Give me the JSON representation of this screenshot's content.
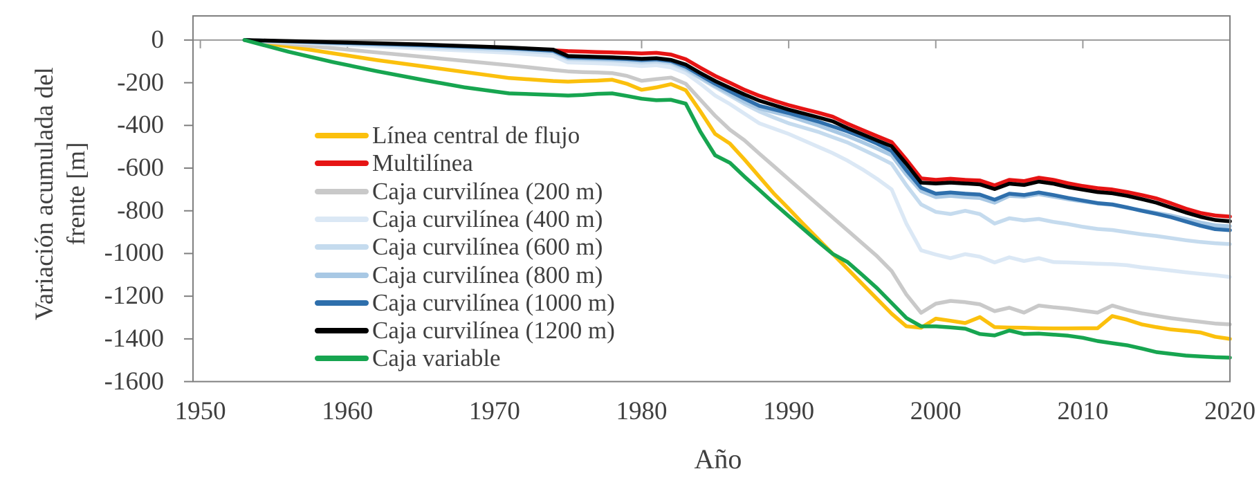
{
  "chart_data": {
    "type": "line",
    "title": "",
    "xlabel": "Año",
    "ylabel": "Variación acumulada del frente [m]",
    "ylabel_lines": [
      "Variación acumulada del",
      "frente [m]"
    ],
    "x_ticks": [
      1950,
      1960,
      1970,
      1980,
      1990,
      2000,
      2010,
      2020
    ],
    "y_ticks": [
      0,
      -200,
      -400,
      -600,
      -800,
      -1000,
      -1200,
      -1400,
      -1600
    ],
    "xlim": [
      1949.5,
      2020
    ],
    "ylim": [
      -1600,
      113
    ],
    "grid": false,
    "zero_axis_line": true,
    "legend_position": "inside-upper-left",
    "x": [
      1953,
      1956,
      1959,
      1962,
      1965,
      1968,
      1971,
      1974,
      1975,
      1976,
      1977,
      1978,
      1979,
      1980,
      1981,
      1982,
      1983,
      1984,
      1985,
      1986,
      1987,
      1988,
      1989,
      1990,
      1991,
      1992,
      1993,
      1994,
      1995,
      1996,
      1997,
      1998,
      1999,
      2000,
      2001,
      2002,
      2003,
      2004,
      2005,
      2006,
      2007,
      2008,
      2009,
      2010,
      2011,
      2012,
      2013,
      2014,
      2015,
      2016,
      2017,
      2018,
      2019,
      2020
    ],
    "series": [
      {
        "name": "Línea central de flujo",
        "color": "#FBC00D",
        "values": [
          0,
          -30,
          -62,
          -94,
          -122,
          -150,
          -178,
          -192,
          -195,
          -192,
          -190,
          -186,
          -205,
          -233,
          -222,
          -207,
          -235,
          -335,
          -440,
          -485,
          -560,
          -640,
          -720,
          -790,
          -862,
          -932,
          -1002,
          -1072,
          -1142,
          -1212,
          -1282,
          -1341,
          -1348,
          -1305,
          -1315,
          -1326,
          -1298,
          -1345,
          -1347,
          -1348,
          -1350,
          -1351,
          -1351,
          -1350,
          -1350,
          -1293,
          -1310,
          -1332,
          -1345,
          -1356,
          -1362,
          -1370,
          -1390,
          -1400
        ]
      },
      {
        "name": "Multilínea",
        "color": "#E61414",
        "values": [
          0,
          -8,
          -14,
          -21,
          -28,
          -36,
          -43,
          -48,
          -52,
          -54,
          -56,
          -58,
          -60,
          -63,
          -60,
          -68,
          -90,
          -130,
          -168,
          -200,
          -233,
          -261,
          -284,
          -305,
          -323,
          -340,
          -359,
          -392,
          -421,
          -450,
          -478,
          -560,
          -648,
          -655,
          -650,
          -655,
          -658,
          -681,
          -655,
          -661,
          -645,
          -655,
          -671,
          -684,
          -694,
          -700,
          -712,
          -726,
          -742,
          -765,
          -790,
          -810,
          -822,
          -827
        ]
      },
      {
        "name": "Caja curvilínea (200 m)",
        "color": "#C9C9C9",
        "values": [
          0,
          -18,
          -38,
          -58,
          -78,
          -98,
          -118,
          -140,
          -147,
          -150,
          -152,
          -155,
          -168,
          -191,
          -183,
          -176,
          -205,
          -280,
          -355,
          -420,
          -470,
          -532,
          -592,
          -652,
          -712,
          -772,
          -832,
          -892,
          -952,
          -1012,
          -1082,
          -1192,
          -1278,
          -1235,
          -1222,
          -1228,
          -1238,
          -1270,
          -1254,
          -1277,
          -1244,
          -1252,
          -1258,
          -1268,
          -1277,
          -1244,
          -1264,
          -1280,
          -1292,
          -1303,
          -1312,
          -1320,
          -1328,
          -1332
        ]
      },
      {
        "name": "Caja curvilínea (400 m)",
        "color": "#DBE8F5",
        "values": [
          0,
          -10,
          -20,
          -30,
          -40,
          -50,
          -60,
          -75,
          -105,
          -107,
          -109,
          -112,
          -116,
          -122,
          -118,
          -128,
          -155,
          -205,
          -260,
          -300,
          -345,
          -390,
          -415,
          -440,
          -470,
          -500,
          -530,
          -565,
          -605,
          -650,
          -700,
          -860,
          -985,
          -1005,
          -1022,
          -1003,
          -1015,
          -1042,
          -1018,
          -1035,
          -1022,
          -1040,
          -1042,
          -1045,
          -1048,
          -1050,
          -1055,
          -1065,
          -1072,
          -1080,
          -1088,
          -1095,
          -1102,
          -1110
        ]
      },
      {
        "name": "Caja curvilínea (600 m)",
        "color": "#C5DBEE",
        "values": [
          0,
          -8,
          -16,
          -24,
          -32,
          -40,
          -48,
          -60,
          -90,
          -92,
          -94,
          -96,
          -100,
          -106,
          -102,
          -110,
          -140,
          -180,
          -220,
          -260,
          -300,
          -335,
          -363,
          -390,
          -410,
          -430,
          -455,
          -480,
          -512,
          -545,
          -580,
          -680,
          -770,
          -805,
          -815,
          -800,
          -815,
          -860,
          -835,
          -845,
          -838,
          -852,
          -862,
          -875,
          -885,
          -890,
          -900,
          -910,
          -918,
          -928,
          -938,
          -946,
          -952,
          -956
        ]
      },
      {
        "name": "Caja curvilínea (800 m)",
        "color": "#A8C8E4",
        "values": [
          0,
          -7,
          -13,
          -19,
          -26,
          -33,
          -40,
          -52,
          -85,
          -87,
          -89,
          -91,
          -94,
          -98,
          -95,
          -103,
          -133,
          -175,
          -215,
          -252,
          -290,
          -320,
          -338,
          -355,
          -378,
          -400,
          -425,
          -450,
          -478,
          -508,
          -540,
          -630,
          -708,
          -736,
          -730,
          -736,
          -740,
          -762,
          -730,
          -734,
          -722,
          -734,
          -746,
          -756,
          -766,
          -772,
          -786,
          -798,
          -810,
          -822,
          -838,
          -855,
          -868,
          -872
        ]
      },
      {
        "name": "Caja curvilínea (1000 m)",
        "color": "#2E6FAC",
        "values": [
          0,
          -6,
          -12,
          -18,
          -24,
          -31,
          -38,
          -50,
          -80,
          -82,
          -84,
          -86,
          -89,
          -93,
          -90,
          -98,
          -125,
          -165,
          -205,
          -240,
          -275,
          -308,
          -325,
          -342,
          -362,
          -382,
          -405,
          -428,
          -455,
          -485,
          -520,
          -610,
          -692,
          -720,
          -714,
          -720,
          -724,
          -748,
          -720,
          -726,
          -714,
          -726,
          -740,
          -752,
          -764,
          -770,
          -784,
          -800,
          -814,
          -830,
          -850,
          -870,
          -886,
          -891
        ]
      },
      {
        "name": "Caja curvilínea (1200 m)",
        "color": "#000000",
        "values": [
          0,
          -5,
          -10,
          -15,
          -21,
          -28,
          -35,
          -45,
          -75,
          -77,
          -79,
          -81,
          -84,
          -88,
          -85,
          -93,
          -115,
          -155,
          -192,
          -224,
          -255,
          -284,
          -305,
          -326,
          -344,
          -362,
          -381,
          -413,
          -441,
          -470,
          -498,
          -580,
          -668,
          -672,
          -668,
          -672,
          -676,
          -698,
          -673,
          -679,
          -663,
          -673,
          -689,
          -701,
          -712,
          -718,
          -730,
          -745,
          -762,
          -785,
          -808,
          -828,
          -843,
          -849
        ]
      },
      {
        "name": "Caja variable",
        "color": "#17A550",
        "values": [
          0,
          -55,
          -103,
          -146,
          -185,
          -222,
          -250,
          -257,
          -260,
          -257,
          -252,
          -250,
          -262,
          -275,
          -282,
          -280,
          -298,
          -430,
          -540,
          -575,
          -640,
          -702,
          -765,
          -825,
          -885,
          -945,
          -1002,
          -1040,
          -1100,
          -1162,
          -1232,
          -1302,
          -1341,
          -1341,
          -1346,
          -1352,
          -1377,
          -1384,
          -1361,
          -1377,
          -1375,
          -1380,
          -1385,
          -1395,
          -1410,
          -1420,
          -1430,
          -1445,
          -1462,
          -1470,
          -1478,
          -1482,
          -1486,
          -1488
        ]
      }
    ],
    "styles": {
      "axis_color": "#7f7f7f",
      "zero_line_color": "#9a9a9a",
      "text_color": "#3f3f3f",
      "line_width": 5.5
    }
  }
}
